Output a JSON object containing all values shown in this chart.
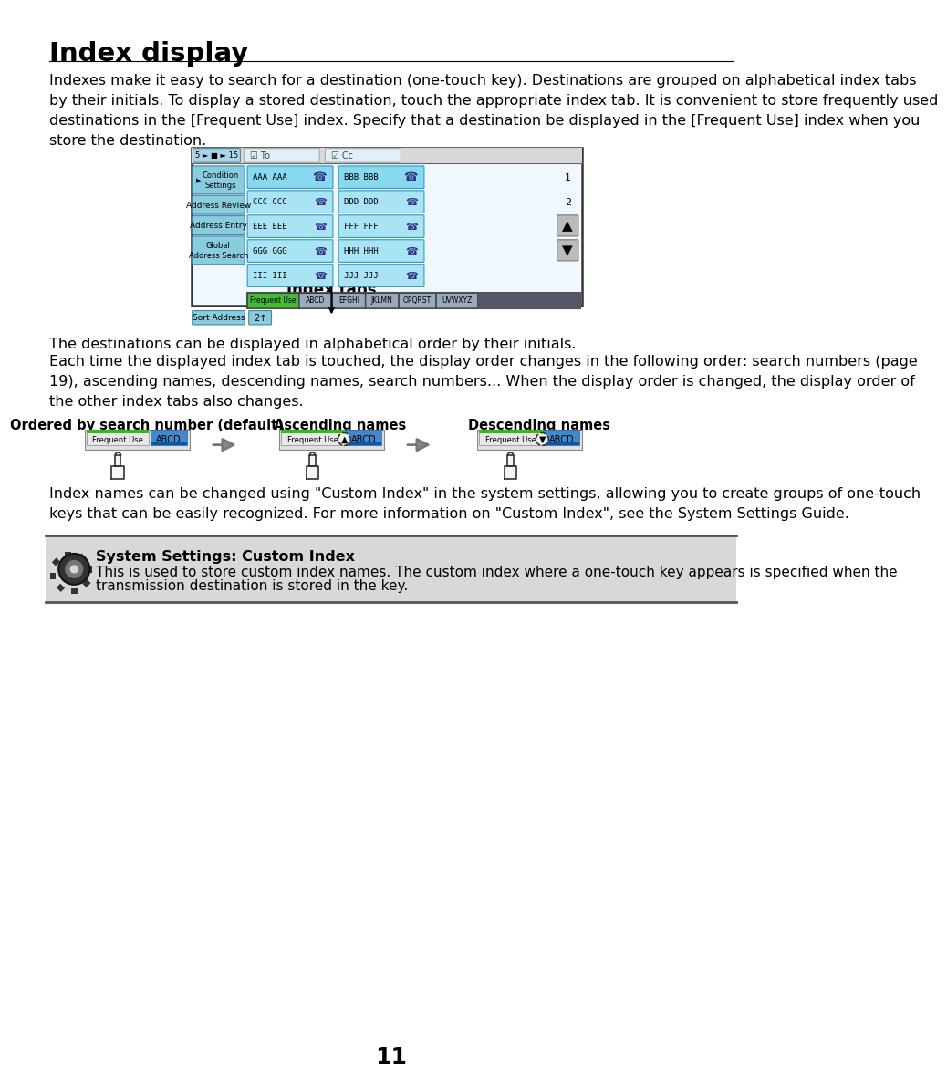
{
  "title": "Index display",
  "bg_color": "#ffffff",
  "page_number": "11",
  "para1": "Indexes make it easy to search for a destination (one-touch key). Destinations are grouped on alphabetical index tabs\nby their initials. To display a stored destination, touch the appropriate index tab. It is convenient to store frequently used\ndestinations in the [Frequent Use] index. Specify that a destination be displayed in the [Frequent Use] index when you\nstore the destination.",
  "para2": "The destinations can be displayed in alphabetical order by their initials.",
  "para3": "Each time the displayed index tab is touched, the display order changes in the following order: search numbers (page\n19), ascending names, descending names, search numbers... When the display order is changed, the display order of\nthe other index tabs also changes.",
  "para4": "Index names can be changed using \"Custom Index\" in the system settings, allowing you to create groups of one-touch\nkeys that can be easily recognized. For more information on \"Custom Index\", see the System Settings Guide.",
  "sys_settings_title": "System Settings: Custom Index",
  "sys_settings_body1": "This is used to store custom index names. The custom index where a one-touch key appears is specified when the",
  "sys_settings_body2": "transmission destination is stored in the key.",
  "index_tabs_label": "Index tabs",
  "label1": "Ordered by search number (default)",
  "label2": "Ascending names",
  "label3": "Descending names",
  "screen_entries": [
    [
      "AAA AAA",
      "BBB BBB"
    ],
    [
      "CCC CCC",
      "DDD DDD"
    ],
    [
      "EEE EEE",
      "FFF FFF"
    ],
    [
      "GGG GGG",
      "HHH HHH"
    ],
    [
      "III III",
      "JJJ JJJ"
    ]
  ],
  "left_buttons": [
    "Condition\nSettings",
    "Address Review",
    "Address Entry",
    "Global\nAddress Search"
  ],
  "index_tabs": [
    "Frequent Use",
    "ABCD",
    "EFGHI",
    "JKLMN",
    "OPQRST",
    "UVWXYZ"
  ]
}
